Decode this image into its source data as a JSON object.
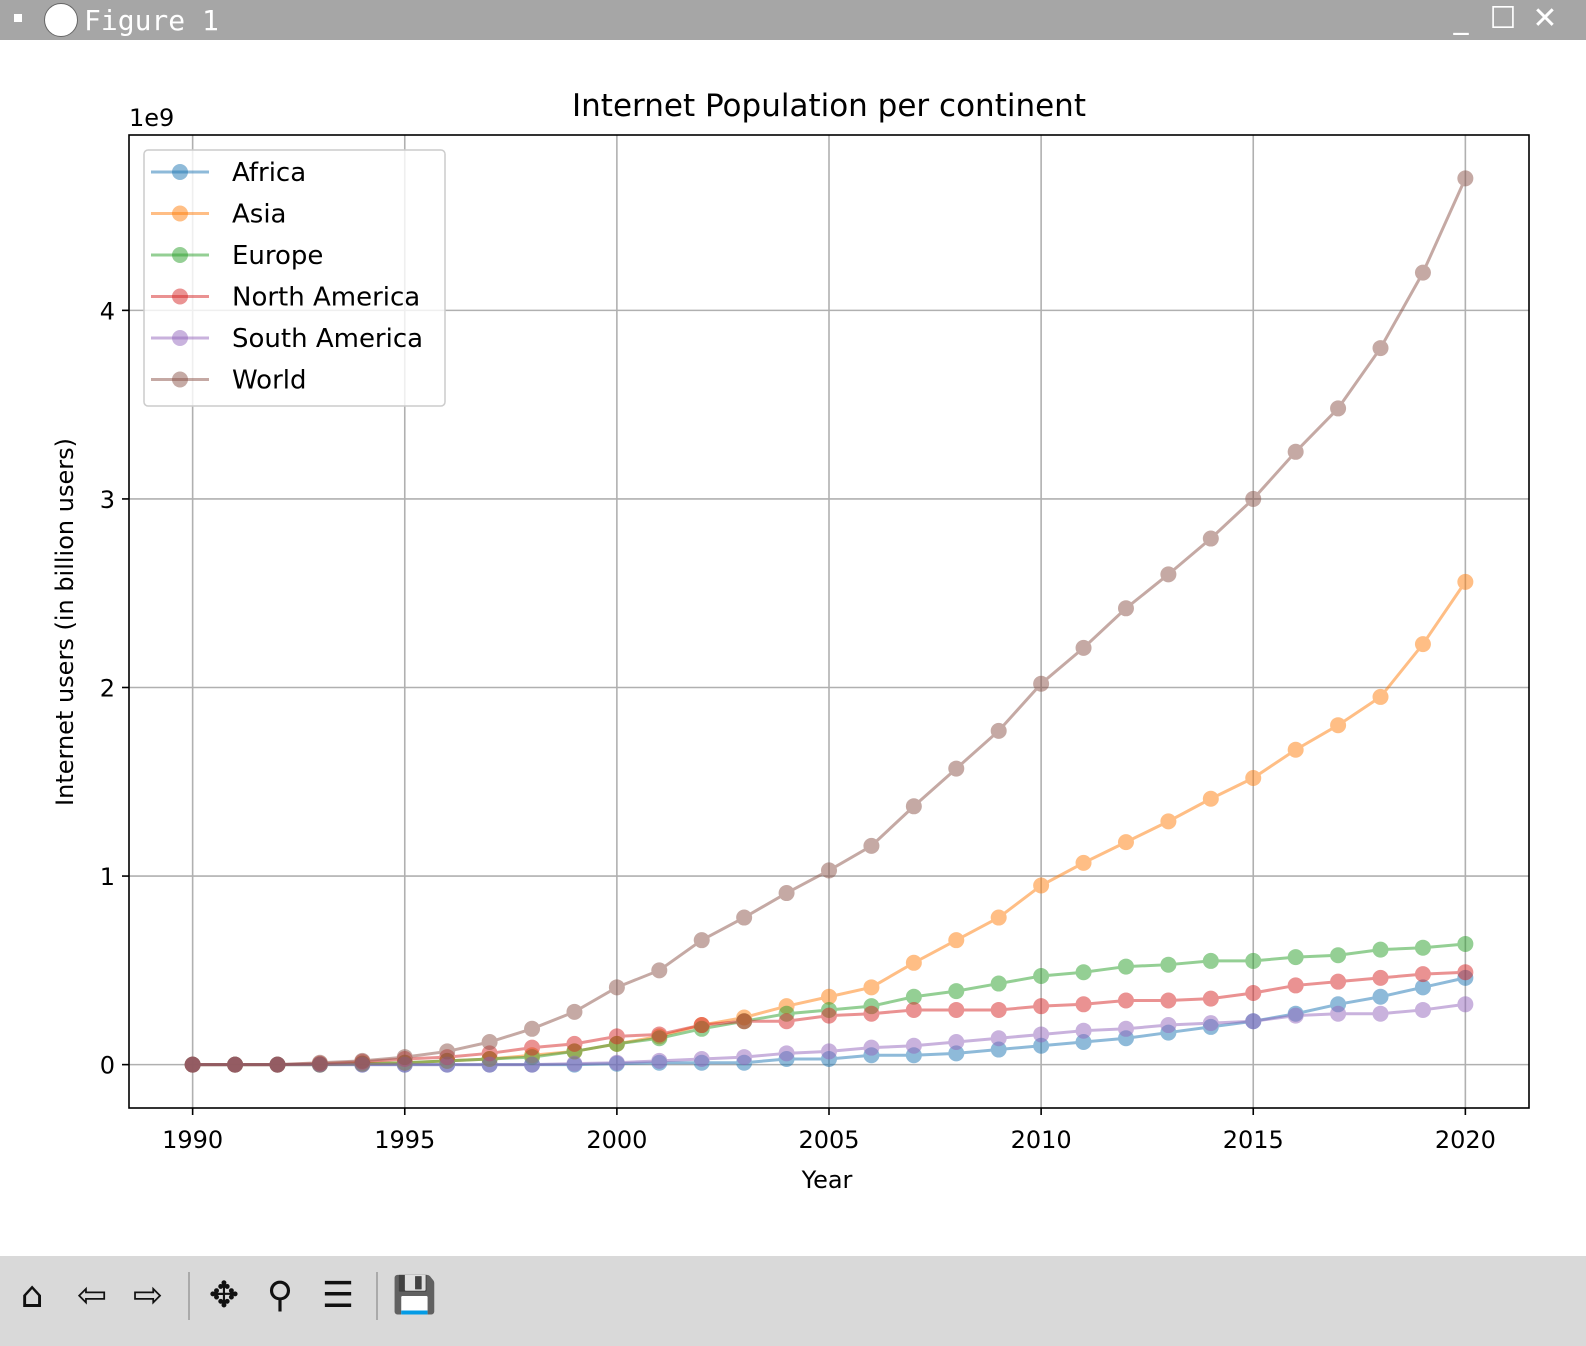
{
  "window": {
    "title": "Figure 1"
  },
  "toolbar": {
    "buttons": [
      {
        "name": "home-icon",
        "glyph": "⌂"
      },
      {
        "name": "back-icon",
        "glyph": "⇦"
      },
      {
        "name": "forward-icon",
        "glyph": "⇨"
      },
      {
        "name": "pan-icon",
        "glyph": "✥"
      },
      {
        "name": "zoom-icon",
        "glyph": "⚲"
      },
      {
        "name": "configure-subplots-icon",
        "glyph": "☰"
      },
      {
        "name": "save-icon",
        "glyph": "💾"
      }
    ]
  },
  "chart_data": {
    "type": "line",
    "title": "Internet Population per continent",
    "xlabel": "Year",
    "ylabel": "Internet users (in billion users)",
    "offset_label": "1e9",
    "xlim": [
      1988.5,
      2021.5
    ],
    "ylim": [
      -0.23,
      4.93
    ],
    "xticks": [
      "1990",
      "1995",
      "2000",
      "2005",
      "2010",
      "2015",
      "2020"
    ],
    "yticks": [
      "0",
      "1",
      "2",
      "3",
      "4"
    ],
    "grid": true,
    "legend": "upper-left",
    "marker": "circle",
    "x": [
      1990,
      1991,
      1992,
      1993,
      1994,
      1995,
      1996,
      1997,
      1998,
      1999,
      2000,
      2001,
      2002,
      2003,
      2004,
      2005,
      2006,
      2007,
      2008,
      2009,
      2010,
      2011,
      2012,
      2013,
      2014,
      2015,
      2016,
      2017,
      2018,
      2019,
      2020
    ],
    "series": [
      {
        "name": "Africa",
        "color": "#1f77b4",
        "values": [
          0,
          0,
          0,
          0,
          0,
          0,
          0,
          0,
          0,
          0,
          0.005,
          0.01,
          0.01,
          0.01,
          0.03,
          0.03,
          0.05,
          0.05,
          0.06,
          0.08,
          0.1,
          0.12,
          0.14,
          0.17,
          0.2,
          0.23,
          0.27,
          0.32,
          0.36,
          0.41,
          0.46
        ]
      },
      {
        "name": "Asia",
        "color": "#ff7f0e",
        "values": [
          0,
          0,
          0,
          0,
          0.005,
          0.01,
          0.02,
          0.03,
          0.05,
          0.07,
          0.11,
          0.15,
          0.21,
          0.25,
          0.31,
          0.36,
          0.41,
          0.54,
          0.66,
          0.78,
          0.95,
          1.07,
          1.18,
          1.29,
          1.41,
          1.52,
          1.67,
          1.8,
          1.95,
          2.23,
          2.56
        ]
      },
      {
        "name": "Europe",
        "color": "#2ca02c",
        "values": [
          0,
          0,
          0,
          0,
          0.005,
          0.01,
          0.02,
          0.03,
          0.04,
          0.07,
          0.11,
          0.14,
          0.19,
          0.23,
          0.27,
          0.29,
          0.31,
          0.36,
          0.39,
          0.43,
          0.47,
          0.49,
          0.52,
          0.53,
          0.55,
          0.55,
          0.57,
          0.58,
          0.61,
          0.62,
          0.64
        ]
      },
      {
        "name": "North America",
        "color": "#d62728",
        "values": [
          0,
          0,
          0,
          0.005,
          0.015,
          0.03,
          0.04,
          0.06,
          0.09,
          0.11,
          0.15,
          0.16,
          0.21,
          0.23,
          0.23,
          0.26,
          0.27,
          0.29,
          0.29,
          0.29,
          0.31,
          0.32,
          0.34,
          0.34,
          0.35,
          0.38,
          0.42,
          0.44,
          0.46,
          0.48,
          0.49
        ]
      },
      {
        "name": "South America",
        "color": "#9467bd",
        "values": [
          0,
          0,
          0,
          0,
          0,
          0,
          0,
          0,
          0,
          0.005,
          0.01,
          0.02,
          0.03,
          0.04,
          0.06,
          0.07,
          0.09,
          0.1,
          0.12,
          0.14,
          0.16,
          0.18,
          0.19,
          0.21,
          0.22,
          0.23,
          0.26,
          0.27,
          0.27,
          0.29,
          0.32
        ]
      },
      {
        "name": "World",
        "color": "#8c564b",
        "values": [
          0,
          0,
          0,
          0.01,
          0.02,
          0.04,
          0.07,
          0.12,
          0.19,
          0.28,
          0.41,
          0.5,
          0.66,
          0.78,
          0.91,
          1.03,
          1.16,
          1.37,
          1.57,
          1.77,
          2.02,
          2.21,
          2.42,
          2.6,
          2.79,
          3.0,
          3.25,
          3.48,
          3.8,
          4.2,
          4.7
        ]
      }
    ]
  }
}
